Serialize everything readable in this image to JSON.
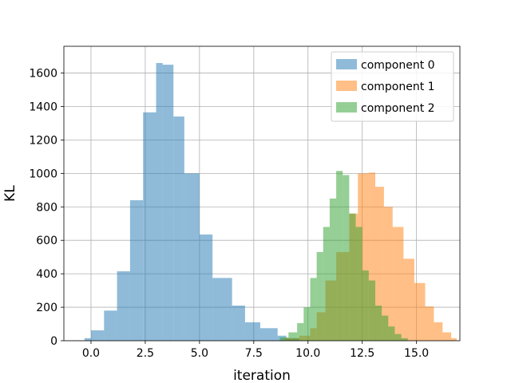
{
  "chart_data": {
    "type": "histogram",
    "title": "",
    "xlabel": "iteration",
    "ylabel": "KL",
    "xlim": [
      -1.25,
      17.0
    ],
    "ylim": [
      0,
      1760
    ],
    "xticks": [
      0.0,
      2.5,
      5.0,
      7.5,
      10.0,
      12.5,
      15.0
    ],
    "xtick_labels": [
      "0.0",
      "2.5",
      "5.0",
      "7.5",
      "10.0",
      "12.5",
      "15.0"
    ],
    "yticks": [
      0,
      200,
      400,
      600,
      800,
      1000,
      1200,
      1400,
      1600
    ],
    "ytick_labels": [
      "0",
      "200",
      "400",
      "600",
      "800",
      "1000",
      "1200",
      "1400",
      "1600"
    ],
    "grid": true,
    "legend_position": "top-right",
    "series": [
      {
        "name": "component 0",
        "color": "#1f77b4",
        "opacity": 0.5,
        "bins": [
          {
            "x0": -0.3,
            "x1": 0.0,
            "count": 15
          },
          {
            "x0": 0.0,
            "x1": 0.6,
            "count": 62
          },
          {
            "x0": 0.6,
            "x1": 1.2,
            "count": 180
          },
          {
            "x0": 1.2,
            "x1": 1.8,
            "count": 415
          },
          {
            "x0": 1.8,
            "x1": 2.4,
            "count": 840
          },
          {
            "x0": 2.4,
            "x1": 3.0,
            "count": 1365
          },
          {
            "x0": 3.0,
            "x1": 3.3,
            "count": 1660
          },
          {
            "x0": 3.3,
            "x1": 3.8,
            "count": 1650
          },
          {
            "x0": 3.8,
            "x1": 4.3,
            "count": 1340
          },
          {
            "x0": 4.3,
            "x1": 5.0,
            "count": 1000
          },
          {
            "x0": 5.0,
            "x1": 5.6,
            "count": 635
          },
          {
            "x0": 5.6,
            "x1": 6.5,
            "count": 375
          },
          {
            "x0": 6.5,
            "x1": 7.1,
            "count": 210
          },
          {
            "x0": 7.1,
            "x1": 7.8,
            "count": 110
          },
          {
            "x0": 7.8,
            "x1": 8.6,
            "count": 75
          },
          {
            "x0": 8.6,
            "x1": 9.0,
            "count": 30
          },
          {
            "x0": 9.0,
            "x1": 9.6,
            "count": 15
          }
        ]
      },
      {
        "name": "component 1",
        "color": "#ff7f0e",
        "opacity": 0.5,
        "bins": [
          {
            "x0": 8.9,
            "x1": 9.6,
            "count": 15
          },
          {
            "x0": 9.6,
            "x1": 10.1,
            "count": 30
          },
          {
            "x0": 10.1,
            "x1": 10.4,
            "count": 75
          },
          {
            "x0": 10.4,
            "x1": 10.8,
            "count": 170
          },
          {
            "x0": 10.8,
            "x1": 11.3,
            "count": 360
          },
          {
            "x0": 11.3,
            "x1": 11.9,
            "count": 530
          },
          {
            "x0": 11.9,
            "x1": 12.3,
            "count": 760
          },
          {
            "x0": 12.3,
            "x1": 12.8,
            "count": 1000
          },
          {
            "x0": 12.8,
            "x1": 13.1,
            "count": 1005
          },
          {
            "x0": 13.1,
            "x1": 13.5,
            "count": 920
          },
          {
            "x0": 13.5,
            "x1": 13.9,
            "count": 800
          },
          {
            "x0": 13.9,
            "x1": 14.4,
            "count": 680
          },
          {
            "x0": 14.4,
            "x1": 14.9,
            "count": 490
          },
          {
            "x0": 14.9,
            "x1": 15.4,
            "count": 345
          },
          {
            "x0": 15.4,
            "x1": 15.8,
            "count": 205
          },
          {
            "x0": 15.8,
            "x1": 16.2,
            "count": 110
          },
          {
            "x0": 16.2,
            "x1": 16.6,
            "count": 50
          },
          {
            "x0": 16.6,
            "x1": 16.85,
            "count": 15
          }
        ]
      },
      {
        "name": "component 2",
        "color": "#2ca02c",
        "opacity": 0.5,
        "bins": [
          {
            "x0": 8.7,
            "x1": 9.1,
            "count": 20
          },
          {
            "x0": 9.1,
            "x1": 9.5,
            "count": 50
          },
          {
            "x0": 9.5,
            "x1": 9.8,
            "count": 105
          },
          {
            "x0": 9.8,
            "x1": 10.1,
            "count": 200
          },
          {
            "x0": 10.1,
            "x1": 10.4,
            "count": 375
          },
          {
            "x0": 10.4,
            "x1": 10.7,
            "count": 530
          },
          {
            "x0": 10.7,
            "x1": 11.0,
            "count": 680
          },
          {
            "x0": 11.0,
            "x1": 11.3,
            "count": 850
          },
          {
            "x0": 11.3,
            "x1": 11.6,
            "count": 1015
          },
          {
            "x0": 11.6,
            "x1": 11.9,
            "count": 990
          },
          {
            "x0": 11.9,
            "x1": 12.2,
            "count": 760
          },
          {
            "x0": 12.2,
            "x1": 12.5,
            "count": 680
          },
          {
            "x0": 12.5,
            "x1": 12.8,
            "count": 420
          },
          {
            "x0": 12.8,
            "x1": 13.1,
            "count": 360
          },
          {
            "x0": 13.1,
            "x1": 13.4,
            "count": 210
          },
          {
            "x0": 13.4,
            "x1": 13.7,
            "count": 150
          },
          {
            "x0": 13.7,
            "x1": 14.0,
            "count": 85
          },
          {
            "x0": 14.0,
            "x1": 14.3,
            "count": 40
          },
          {
            "x0": 14.3,
            "x1": 14.6,
            "count": 15
          }
        ]
      }
    ]
  }
}
